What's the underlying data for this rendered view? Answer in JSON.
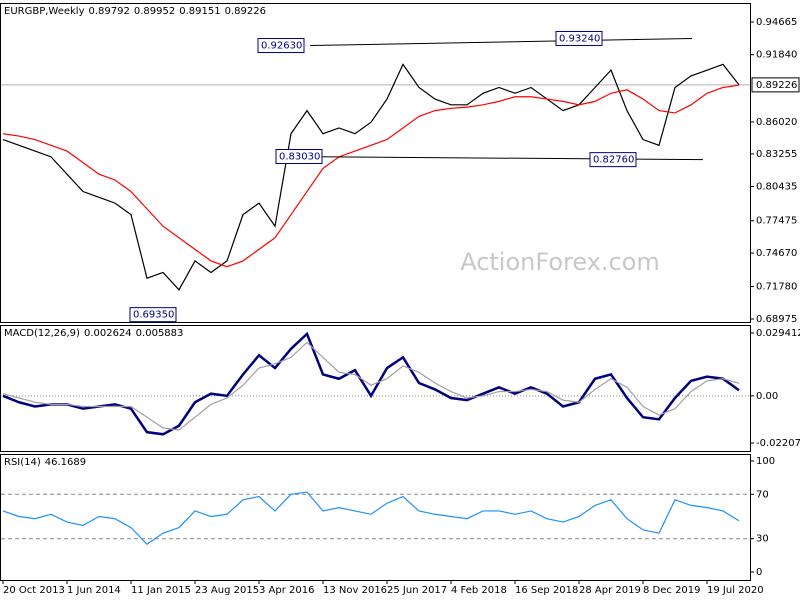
{
  "chart_data": [
    {
      "type": "line",
      "title": "EURGBP,Weekly",
      "header_values": [
        0.89792,
        0.89952,
        0.89151,
        0.89226
      ],
      "watermark": "ActionForex.com",
      "ylim": [
        0.68975,
        0.94665
      ],
      "yticks": [
        0.94665,
        {
          "value": 0.9184,
          "label": "0.91840"
        },
        {
          "value": 0.8602,
          "label": "0.86020"
        },
        0.83255,
        0.80435,
        0.77475,
        {
          "value": 0.7467,
          "label": "0.74670"
        },
        {
          "value": 0.7178,
          "label": "0.71780"
        },
        0.68975
      ],
      "last_price": 0.89226,
      "annotations": [
        {
          "value": 0.9263,
          "label": "0.92630"
        },
        {
          "value": 0.9324,
          "label": "0.93240"
        },
        {
          "value": 0.8303,
          "label": "0.83030"
        },
        {
          "value": 0.8276,
          "label": "0.82760"
        },
        {
          "value": 0.6935,
          "label": "0.69350"
        }
      ],
      "series": [
        {
          "name": "EURGBP",
          "color": "#000000",
          "values": [
            0.845,
            0.84,
            0.835,
            0.83,
            0.815,
            0.8,
            0.795,
            0.79,
            0.78,
            0.725,
            0.73,
            0.715,
            0.74,
            0.73,
            0.74,
            0.78,
            0.79,
            0.77,
            0.85,
            0.87,
            0.85,
            0.855,
            0.85,
            0.86,
            0.88,
            0.91,
            0.89,
            0.88,
            0.875,
            0.875,
            0.885,
            0.89,
            0.885,
            0.89,
            0.88,
            0.87,
            0.875,
            0.89,
            0.905,
            0.87,
            0.845,
            0.84,
            0.89,
            0.9,
            0.905,
            0.91,
            0.89226
          ]
        },
        {
          "name": "MA",
          "color": "#ff0000",
          "values": [
            0.85,
            0.848,
            0.845,
            0.84,
            0.835,
            0.825,
            0.815,
            0.81,
            0.8,
            0.785,
            0.77,
            0.76,
            0.75,
            0.74,
            0.735,
            0.74,
            0.75,
            0.76,
            0.78,
            0.8,
            0.82,
            0.83,
            0.835,
            0.84,
            0.845,
            0.855,
            0.865,
            0.87,
            0.872,
            0.873,
            0.875,
            0.878,
            0.882,
            0.882,
            0.88,
            0.878,
            0.875,
            0.878,
            0.885,
            0.888,
            0.88,
            0.87,
            0.868,
            0.875,
            0.885,
            0.89,
            0.892
          ]
        }
      ]
    },
    {
      "type": "line",
      "title": "MACD(12,26,9)",
      "header_values": [
        0.002624,
        0.005883
      ],
      "grid": true,
      "ylim": [
        -0.022074,
        0.029412
      ],
      "yticks": [
        0.029412,
        {
          "value": 0,
          "label": "0.00"
        },
        -0.022074
      ],
      "series": [
        {
          "name": "MACD",
          "color": "#000080",
          "values": [
            0,
            -0.003,
            -0.005,
            -0.004,
            -0.004,
            -0.006,
            -0.005,
            -0.004,
            -0.006,
            -0.017,
            -0.018,
            -0.014,
            -0.003,
            0.001,
            0,
            0.01,
            0.019,
            0.013,
            0.022,
            0.029,
            0.01,
            0.008,
            0.012,
            0,
            0.013,
            0.018,
            0.006,
            0.003,
            -0.001,
            -0.002,
            0.001,
            0.004,
            0.001,
            0.004,
            0.001,
            -0.005,
            -0.003,
            0.008,
            0.01,
            -0.001,
            -0.01,
            -0.011,
            -0.001,
            0.007,
            0.009,
            0.008,
            0.002624
          ]
        },
        {
          "name": "Signal",
          "color": "#a0a0a0",
          "values": [
            0.001,
            -0.001,
            -0.003,
            -0.004,
            -0.004,
            -0.005,
            -0.005,
            -0.005,
            -0.005,
            -0.01,
            -0.015,
            -0.016,
            -0.01,
            -0.004,
            -0.001,
            0.005,
            0.013,
            0.015,
            0.018,
            0.025,
            0.018,
            0.011,
            0.01,
            0.005,
            0.008,
            0.014,
            0.011,
            0.006,
            0.002,
            -0.001,
            0,
            0.002,
            0.002,
            0.003,
            0.002,
            -0.002,
            -0.003,
            0.003,
            0.008,
            0.004,
            -0.005,
            -0.009,
            -0.006,
            0.002,
            0.007,
            0.008,
            0.005883
          ]
        }
      ]
    },
    {
      "type": "line",
      "title": "RSI(14)",
      "header_values": [
        46.1689
      ],
      "grid": true,
      "ylim": [
        0,
        100
      ],
      "yticks": [
        100,
        70,
        30,
        0
      ],
      "categories": [
        "20 Oct 2013",
        null,
        null,
        null,
        "1 Jun 2014",
        null,
        null,
        null,
        "11 Jan 2015",
        null,
        null,
        null,
        "23 Aug 2015",
        null,
        null,
        null,
        "3 Apr 2016",
        null,
        null,
        null,
        "13 Nov 2016",
        null,
        null,
        null,
        "25 Jun 2017",
        null,
        null,
        null,
        "4 Feb 2018",
        null,
        null,
        null,
        "16 Sep 2018",
        null,
        null,
        null,
        "28 Apr 2019",
        null,
        null,
        null,
        "8 Dec 2019",
        null,
        null,
        null,
        "19 Jul 2020",
        null,
        null
      ],
      "series": [
        {
          "name": "RSI",
          "color": "#1e90ff",
          "values": [
            55,
            50,
            48,
            52,
            45,
            42,
            50,
            48,
            40,
            25,
            35,
            40,
            55,
            50,
            52,
            65,
            68,
            55,
            70,
            72,
            55,
            58,
            55,
            52,
            62,
            68,
            55,
            52,
            50,
            48,
            55,
            55,
            52,
            55,
            48,
            45,
            50,
            60,
            65,
            48,
            38,
            35,
            65,
            60,
            58,
            55,
            46.1689
          ]
        }
      ]
    }
  ]
}
